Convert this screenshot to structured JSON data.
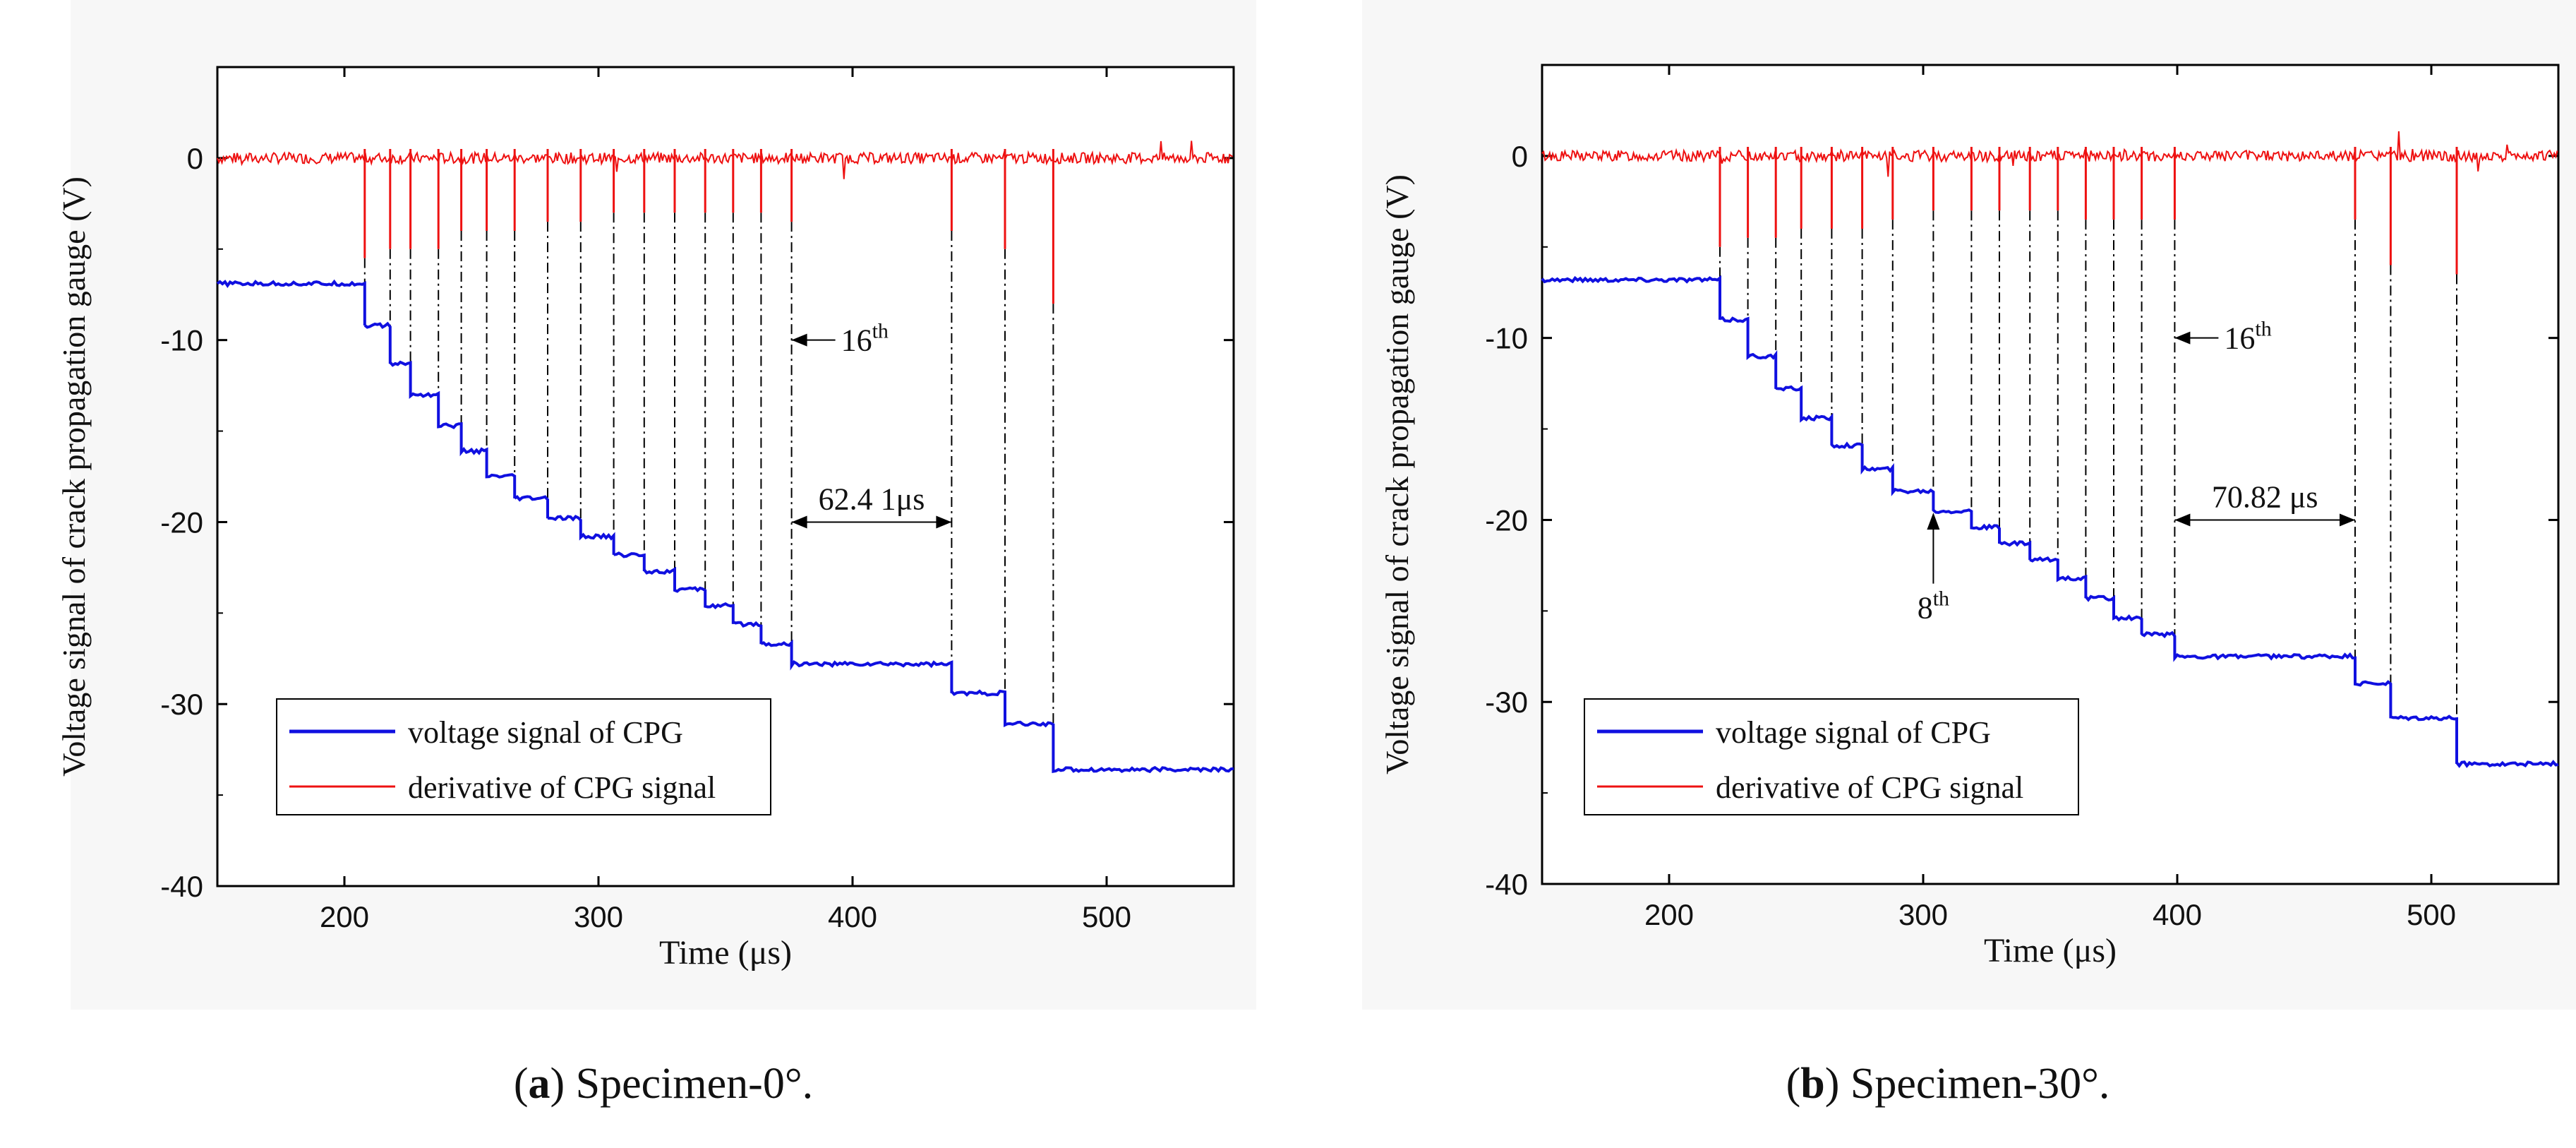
{
  "chart_data": [
    {
      "type": "line",
      "panel": "a",
      "caption_letter": "a",
      "caption_rest": ") Specimen-0°.",
      "caption_open": "(",
      "xlabel": "Time (μs)",
      "ylabel": "Voltage signal of crack propagation gauge (V)",
      "xlim": [
        150,
        550
      ],
      "ylim": [
        -40,
        5
      ],
      "xticks": [
        200,
        300,
        400,
        500
      ],
      "yticks": [
        0,
        -10,
        -20,
        -30,
        -40
      ],
      "grid": false,
      "legend_position": "bottom-left",
      "series": [
        {
          "name": "voltage signal of CPG",
          "color": "#1010e0",
          "points": [
            [
              150,
              -6.9
            ],
            [
              208,
              -6.9
            ],
            [
              208,
              -9.2
            ],
            [
              218,
              -9.2
            ],
            [
              218,
              -11.3
            ],
            [
              226,
              -11.3
            ],
            [
              226,
              -13.0
            ],
            [
              237,
              -13.0
            ],
            [
              237,
              -14.7
            ],
            [
              246,
              -14.7
            ],
            [
              246,
              -16.1
            ],
            [
              256,
              -16.1
            ],
            [
              256,
              -17.5
            ],
            [
              267,
              -17.5
            ],
            [
              267,
              -18.7
            ],
            [
              280,
              -18.7
            ],
            [
              280,
              -19.8
            ],
            [
              293,
              -19.8
            ],
            [
              293,
              -20.8
            ],
            [
              306,
              -20.8
            ],
            [
              306,
              -21.8
            ],
            [
              318,
              -21.8
            ],
            [
              318,
              -22.7
            ],
            [
              330,
              -22.7
            ],
            [
              330,
              -23.7
            ],
            [
              342,
              -23.7
            ],
            [
              342,
              -24.6
            ],
            [
              353,
              -24.6
            ],
            [
              353,
              -25.6
            ],
            [
              364,
              -25.6
            ],
            [
              364,
              -26.7
            ],
            [
              376,
              -26.7
            ],
            [
              376,
              -27.8
            ],
            [
              439,
              -27.8
            ],
            [
              439,
              -29.4
            ],
            [
              460,
              -29.4
            ],
            [
              460,
              -31.1
            ],
            [
              479,
              -31.1
            ],
            [
              479,
              -33.6
            ],
            [
              550,
              -33.6
            ]
          ]
        },
        {
          "name": "derivative of CPG signal",
          "color": "#ee1111",
          "baseline": 0,
          "spikes": [
            [
              208,
              -5.5
            ],
            [
              218,
              -5.0
            ],
            [
              226,
              -5.0
            ],
            [
              237,
              -5.0
            ],
            [
              246,
              -4.0
            ],
            [
              256,
              -4.0
            ],
            [
              267,
              -4.0
            ],
            [
              280,
              -3.5
            ],
            [
              293,
              -3.5
            ],
            [
              306,
              -3.0
            ],
            [
              318,
              -3.0
            ],
            [
              330,
              -3.0
            ],
            [
              342,
              -3.0
            ],
            [
              353,
              -3.0
            ],
            [
              364,
              -3.0
            ],
            [
              376,
              -3.5
            ],
            [
              439,
              -4.0
            ],
            [
              460,
              -5.0
            ],
            [
              479,
              -8.0
            ]
          ]
        }
      ],
      "annotations": [
        {
          "text": "16",
          "sup": "th",
          "x": 376,
          "y": -10
        },
        {
          "text": "62.4 1μs",
          "from": 376,
          "to": 439,
          "y": -20
        }
      ]
    },
    {
      "type": "line",
      "panel": "b",
      "caption_letter": "b",
      "caption_rest": ") Specimen-30°.",
      "caption_open": "(",
      "xlabel": "Time (μs)",
      "ylabel": "Voltage signal of crack propagation gauge (V)",
      "xlim": [
        150,
        550
      ],
      "ylim": [
        -40,
        5
      ],
      "xticks": [
        200,
        300,
        400,
        500
      ],
      "yticks": [
        0,
        -10,
        -20,
        -30,
        -40
      ],
      "grid": false,
      "legend_position": "bottom-left",
      "series": [
        {
          "name": "voltage signal of CPG",
          "color": "#1010e0",
          "points": [
            [
              150,
              -6.8
            ],
            [
              220,
              -6.8
            ],
            [
              220,
              -9.0
            ],
            [
              231,
              -9.0
            ],
            [
              231,
              -11.0
            ],
            [
              242,
              -11.0
            ],
            [
              242,
              -12.8
            ],
            [
              252,
              -12.8
            ],
            [
              252,
              -14.4
            ],
            [
              264,
              -14.4
            ],
            [
              264,
              -15.9
            ],
            [
              276,
              -15.9
            ],
            [
              276,
              -17.2
            ],
            [
              288,
              -17.2
            ],
            [
              288,
              -18.4
            ],
            [
              304,
              -18.4
            ],
            [
              304,
              -19.5
            ],
            [
              319,
              -19.5
            ],
            [
              319,
              -20.4
            ],
            [
              330,
              -20.4
            ],
            [
              330,
              -21.3
            ],
            [
              342,
              -21.3
            ],
            [
              342,
              -22.2
            ],
            [
              353,
              -22.2
            ],
            [
              353,
              -23.2
            ],
            [
              364,
              -23.2
            ],
            [
              364,
              -24.3
            ],
            [
              375,
              -24.3
            ],
            [
              375,
              -25.4
            ],
            [
              386,
              -25.4
            ],
            [
              386,
              -26.3
            ],
            [
              399,
              -26.3
            ],
            [
              399,
              -27.5
            ],
            [
              470,
              -27.5
            ],
            [
              470,
              -29.0
            ],
            [
              484,
              -29.0
            ],
            [
              484,
              -30.9
            ],
            [
              510,
              -30.9
            ],
            [
              510,
              -33.4
            ],
            [
              550,
              -33.4
            ]
          ]
        },
        {
          "name": "derivative of CPG signal",
          "color": "#ee1111",
          "baseline": 0,
          "spikes": [
            [
              220,
              -5.0
            ],
            [
              231,
              -4.5
            ],
            [
              242,
              -4.5
            ],
            [
              252,
              -4.0
            ],
            [
              264,
              -4.0
            ],
            [
              276,
              -4.0
            ],
            [
              288,
              -3.5
            ],
            [
              304,
              -3.0
            ],
            [
              319,
              -3.0
            ],
            [
              330,
              -3.0
            ],
            [
              342,
              -3.0
            ],
            [
              353,
              -3.0
            ],
            [
              364,
              -3.5
            ],
            [
              375,
              -3.5
            ],
            [
              386,
              -3.5
            ],
            [
              399,
              -3.5
            ],
            [
              470,
              -3.5
            ],
            [
              484,
              -6.0
            ],
            [
              510,
              -6.5
            ]
          ]
        }
      ],
      "annotations": [
        {
          "text": "16",
          "sup": "th",
          "x": 399,
          "y": -10
        },
        {
          "text": "70.82 μs",
          "from": 399,
          "to": 470,
          "y": -20
        },
        {
          "text": "8",
          "sup": "th",
          "x": 304,
          "y": -25
        }
      ]
    }
  ]
}
